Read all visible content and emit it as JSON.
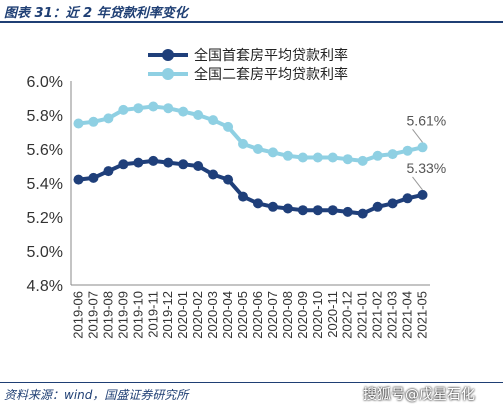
{
  "figure": {
    "title": "图表 31：近 2 年贷款利率变化",
    "source": "资料来源：wind，国盛证券研究所",
    "watermark": "搜狐号@戊星石化"
  },
  "chart_data": {
    "type": "line",
    "x": [
      "2019-06",
      "2019-07",
      "2019-08",
      "2019-09",
      "2019-10",
      "2019-11",
      "2019-12",
      "2020-01",
      "2020-02",
      "2020-03",
      "2020-04",
      "2020-05",
      "2020-06",
      "2020-07",
      "2020-08",
      "2020-09",
      "2020-10",
      "2020-11",
      "2020-12",
      "2021-01",
      "2021-02",
      "2021-03",
      "2021-04",
      "2021-05"
    ],
    "x_tick_labels": [
      "2019-06",
      "2019-07",
      "2019-08",
      "2019-09",
      "2019-10",
      "2019-11",
      "2019-12",
      "2020-01",
      "2020-02",
      "2020-03",
      "2020-04",
      "2020-05",
      "2020-06",
      "2020-07",
      "2020-08",
      "2020-09",
      "2020-10",
      "2020-11",
      "2020-12",
      "2021-01",
      "2021-02",
      "2021-03",
      "2021-04",
      "2021-05"
    ],
    "series": [
      {
        "name": "全国首套房平均贷款利率",
        "color": "#1f3f7a",
        "values": [
          5.42,
          5.43,
          5.47,
          5.51,
          5.52,
          5.53,
          5.52,
          5.51,
          5.5,
          5.45,
          5.42,
          5.32,
          5.28,
          5.26,
          5.25,
          5.24,
          5.24,
          5.24,
          5.23,
          5.22,
          5.26,
          5.28,
          5.31,
          5.33
        ]
      },
      {
        "name": "全国二套房平均贷款利率",
        "color": "#8fd0e3",
        "values": [
          5.75,
          5.76,
          5.78,
          5.83,
          5.84,
          5.85,
          5.84,
          5.82,
          5.8,
          5.77,
          5.73,
          5.63,
          5.6,
          5.58,
          5.56,
          5.55,
          5.55,
          5.55,
          5.54,
          5.53,
          5.56,
          5.57,
          5.59,
          5.61
        ]
      }
    ],
    "data_labels": [
      {
        "series": 1,
        "text": "5.61%"
      },
      {
        "series": 0,
        "text": "5.33%"
      }
    ],
    "ylim": [
      4.8,
      6.0
    ],
    "yticks": [
      4.8,
      5.0,
      5.2,
      5.4,
      5.6,
      5.8,
      6.0
    ],
    "ytick_labels": [
      "4.8%",
      "5.0%",
      "5.2%",
      "5.4%",
      "5.6%",
      "5.8%",
      "6.0%"
    ],
    "xlabel": "",
    "ylabel": "",
    "grid": false,
    "legend_position": "top-left"
  }
}
